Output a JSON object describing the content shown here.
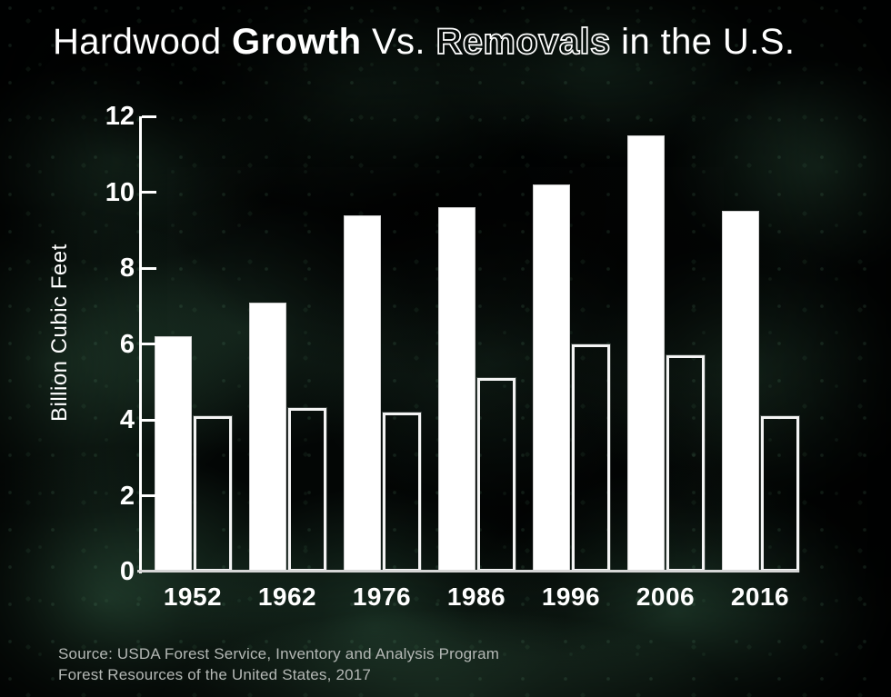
{
  "title": {
    "part1": "Hardwood ",
    "part2": "Growth",
    "part3": " Vs. ",
    "part4": "Removals",
    "part5": " in the U.S."
  },
  "source": {
    "line1": "Source: USDA Forest Service, Inventory and Analysis Program",
    "line2": "Forest Resources of the United States, 2017"
  },
  "colors": {
    "text": "#ffffff",
    "source_text": "#b4b8b5",
    "solid_bar_fill": "#ffffff",
    "hollow_bar_stroke": "#f4f4f4",
    "axis": "#ffffff",
    "baseline": "#d6d6d6",
    "background_base": "#030605",
    "background_green": "#2e5741"
  },
  "chart_data": {
    "type": "bar",
    "title": "Hardwood Growth Vs. Removals in the U.S.",
    "xlabel": "",
    "ylabel": "Billion Cubic Feet",
    "categories": [
      "1952",
      "1962",
      "1976",
      "1986",
      "1996",
      "2006",
      "2016"
    ],
    "series": [
      {
        "name": "Growth",
        "style": "solid-white-bar",
        "values": [
          6.2,
          7.1,
          9.4,
          9.6,
          10.2,
          11.5,
          9.5
        ]
      },
      {
        "name": "Removals",
        "style": "outlined-hollow-bar",
        "values": [
          4.1,
          4.3,
          4.2,
          5.1,
          6.0,
          5.7,
          4.1
        ]
      }
    ],
    "yticks": [
      0,
      2,
      4,
      6,
      8,
      10,
      12
    ],
    "ylim": [
      0,
      12
    ],
    "grid": false,
    "legend_position": "none"
  }
}
